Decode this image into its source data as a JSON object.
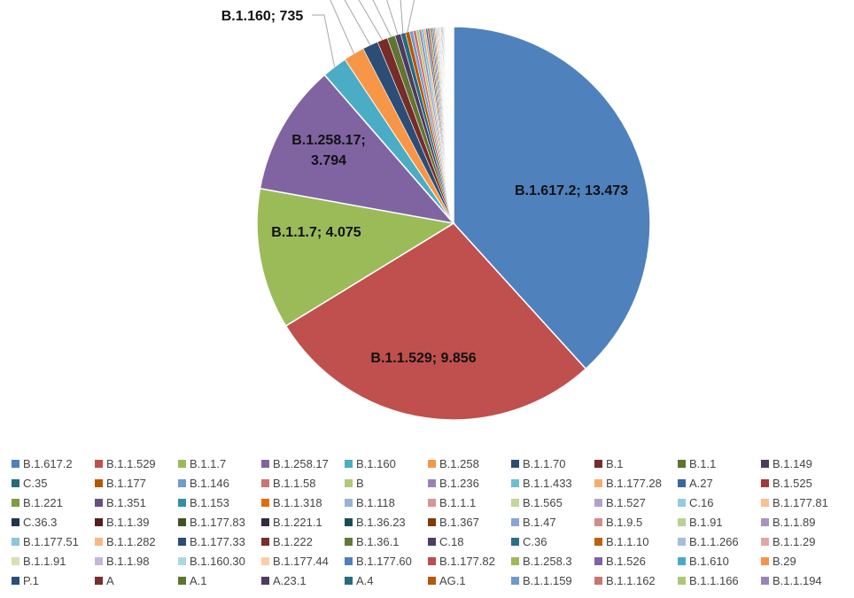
{
  "chart_data": {
    "type": "pie",
    "series": [
      {
        "name": "B.1.617.2",
        "value": 13473,
        "color": "#4F81BD"
      },
      {
        "name": "B.1.1.529",
        "value": 9856,
        "color": "#C0504D"
      },
      {
        "name": "B.1.1.7",
        "value": 4075,
        "color": "#9BBB59"
      },
      {
        "name": "B.1.258.17",
        "value": 3794,
        "color": "#8064A2"
      },
      {
        "name": "B.1.160",
        "value": 735,
        "color": "#4BACC6"
      },
      {
        "name": "B.1.258",
        "value": 600,
        "color": "#F79646"
      },
      {
        "name": "B.1.1.70",
        "value": 450,
        "color": "#2C4D75"
      },
      {
        "name": "B.1",
        "value": 300,
        "color": "#772C2A"
      },
      {
        "name": "B.1.1",
        "value": 230,
        "color": "#5F7530"
      },
      {
        "name": "B.1.149",
        "value": 170,
        "color": "#4D3B62"
      },
      {
        "name": "C.35",
        "value": 140,
        "color": "#276A7C"
      },
      {
        "name": "B.1.177",
        "value": 120,
        "color": "#B65708"
      },
      {
        "name": "B.1.146",
        "value": 100,
        "color": "#729ACA"
      },
      {
        "name": "B.1.1.58",
        "value": 90,
        "color": "#CD7371"
      },
      {
        "name": "B",
        "value": 80,
        "color": "#AFC97A"
      },
      {
        "name": "B.1.236",
        "value": 72,
        "color": "#9983B5"
      },
      {
        "name": "B.1.1.433",
        "value": 65,
        "color": "#6FBDD1"
      },
      {
        "name": "B.1.177.28",
        "value": 60,
        "color": "#F9AB6B"
      },
      {
        "name": "A.27",
        "value": 55,
        "color": "#3A679C"
      },
      {
        "name": "B.1.525",
        "value": 50,
        "color": "#9F3B38"
      },
      {
        "name": "B.1.221",
        "value": 46,
        "color": "#7E9C40"
      },
      {
        "name": "B.1.351",
        "value": 42,
        "color": "#664F83"
      },
      {
        "name": "B.1.153",
        "value": 39,
        "color": "#358EA6"
      },
      {
        "name": "B.1.1.318",
        "value": 36,
        "color": "#E46C0A"
      },
      {
        "name": "B.1.118",
        "value": 33,
        "color": "#95B3D7"
      },
      {
        "name": "B.1.1.1",
        "value": 31,
        "color": "#D99694"
      },
      {
        "name": "B.1.565",
        "value": 29,
        "color": "#C3D69B"
      },
      {
        "name": "B.1.527",
        "value": 27,
        "color": "#B3A2C7"
      },
      {
        "name": "C.16",
        "value": 25,
        "color": "#93CDDD"
      },
      {
        "name": "B.1.177.81",
        "value": 23,
        "color": "#FAC090"
      },
      {
        "name": "C.36.3",
        "value": 22,
        "color": "#1F3552"
      },
      {
        "name": "B.1.1.39",
        "value": 21,
        "color": "#541F1D"
      },
      {
        "name": "B.1.177.83",
        "value": 20,
        "color": "#435221"
      },
      {
        "name": "B.1.221.1",
        "value": 19,
        "color": "#362944"
      },
      {
        "name": "B.1.36.23",
        "value": 18,
        "color": "#1B4A57"
      },
      {
        "name": "B.1.367",
        "value": 17,
        "color": "#7F3D06"
      },
      {
        "name": "B.1.47",
        "value": 16,
        "color": "#87A7D3"
      },
      {
        "name": "B.1.9.5",
        "value": 15,
        "color": "#D58C8A"
      },
      {
        "name": "B.1.91",
        "value": 14,
        "color": "#BBD18F"
      },
      {
        "name": "B.1.1.89",
        "value": 13,
        "color": "#A995BF"
      },
      {
        "name": "B.1.177.51",
        "value": 12,
        "color": "#89C7D9"
      },
      {
        "name": "B.1.1.282",
        "value": 12,
        "color": "#FAB783"
      },
      {
        "name": "B.1.177.33",
        "value": 11,
        "color": "#2B4C75"
      },
      {
        "name": "B.1.222",
        "value": 11,
        "color": "#772F2D"
      },
      {
        "name": "B.1.36.1",
        "value": 10,
        "color": "#60793A"
      },
      {
        "name": "C.18",
        "value": 10,
        "color": "#4F3D66"
      },
      {
        "name": "C.36",
        "value": 9,
        "color": "#2A7084"
      },
      {
        "name": "B.1.1.10",
        "value": 9,
        "color": "#C0600B"
      },
      {
        "name": "B.1.1.266",
        "value": 8,
        "color": "#A5BFDF"
      },
      {
        "name": "B.1.1.29",
        "value": 8,
        "color": "#DFA8A6"
      },
      {
        "name": "B.1.1.91",
        "value": 7,
        "color": "#D2E2B1"
      },
      {
        "name": "B.1.1.98",
        "value": 7,
        "color": "#C4B7D6"
      },
      {
        "name": "B.1.160.30",
        "value": 6,
        "color": "#ABD7E3"
      },
      {
        "name": "B.1.177.44",
        "value": 6,
        "color": "#FBCCA6"
      },
      {
        "name": "B.1.177.60",
        "value": 6,
        "color": "#4F7FBD"
      },
      {
        "name": "B.1.177.82",
        "value": 5,
        "color": "#C04D4B"
      },
      {
        "name": "B.1.258.3",
        "value": 5,
        "color": "#9BBA58"
      },
      {
        "name": "B.1.526",
        "value": 5,
        "color": "#7F63A1"
      },
      {
        "name": "B.1.610",
        "value": 5,
        "color": "#4AAAC5"
      },
      {
        "name": "B.29",
        "value": 4,
        "color": "#F69445"
      },
      {
        "name": "P.1",
        "value": 4,
        "color": "#2C4E77"
      },
      {
        "name": "A",
        "value": 4,
        "color": "#76302C"
      },
      {
        "name": "A.1",
        "value": 4,
        "color": "#5E7532"
      },
      {
        "name": "A.23.1",
        "value": 3,
        "color": "#4C3B61"
      },
      {
        "name": "A.4",
        "value": 3,
        "color": "#276B7D"
      },
      {
        "name": "AG.1",
        "value": 3,
        "color": "#B55809"
      },
      {
        "name": "B.1.1.159",
        "value": 3,
        "color": "#7099C9"
      },
      {
        "name": "B.1.1.162",
        "value": 3,
        "color": "#CC7472"
      },
      {
        "name": "B.1.1.166",
        "value": 3,
        "color": "#AEC879"
      },
      {
        "name": "B.1.1.194",
        "value": 3,
        "color": "#9884B4"
      }
    ],
    "data_labels": [
      {
        "series_index": 0,
        "text": "B.1.617.2; 13.473"
      },
      {
        "series_index": 1,
        "text": "B.1.1.529; 9.856"
      },
      {
        "series_index": 2,
        "text": "B.1.1.7; 4.075"
      },
      {
        "series_index": 3,
        "lines": [
          "B.1.258.17;",
          "3.794"
        ]
      },
      {
        "series_index": 4,
        "text": "B.1.160; 735"
      }
    ],
    "legend_position": "bottom"
  }
}
